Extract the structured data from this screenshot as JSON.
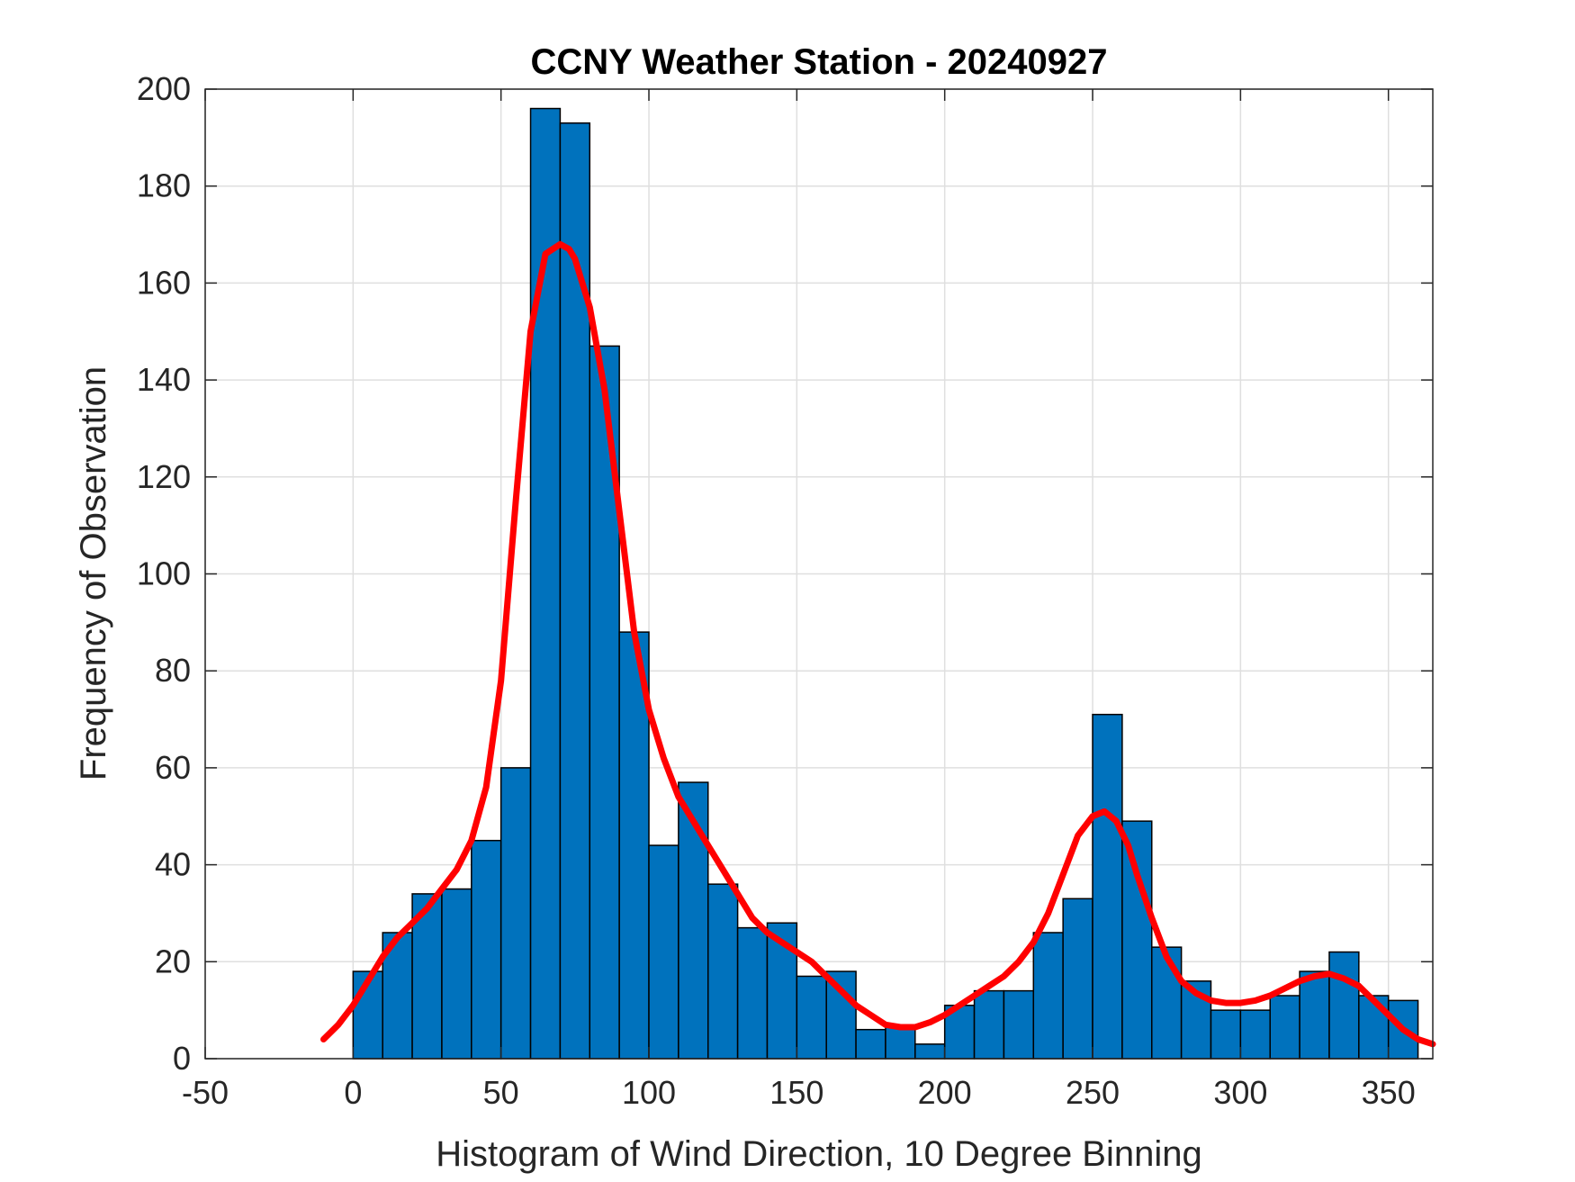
{
  "chart_data": {
    "type": "bar",
    "title": "CCNY Weather Station - 20240927",
    "xlabel": "Histogram of Wind Direction, 10 Degree Binning",
    "ylabel": "Frequency of Observation",
    "xlim": [
      -50,
      365
    ],
    "ylim": [
      0,
      200
    ],
    "xticks": [
      -50,
      0,
      50,
      100,
      150,
      200,
      250,
      300,
      350
    ],
    "yticks": [
      0,
      20,
      40,
      60,
      80,
      100,
      120,
      140,
      160,
      180,
      200
    ],
    "grid": true,
    "bin_width": 10,
    "bin_edges_start": [
      0,
      10,
      20,
      30,
      40,
      50,
      60,
      70,
      80,
      90,
      100,
      110,
      120,
      130,
      140,
      150,
      160,
      170,
      180,
      190,
      200,
      210,
      220,
      230,
      240,
      250,
      260,
      270,
      280,
      290,
      300,
      310,
      320,
      330,
      340,
      350
    ],
    "values": [
      18,
      26,
      34,
      35,
      45,
      60,
      196,
      193,
      147,
      88,
      44,
      57,
      36,
      27,
      28,
      17,
      18,
      6,
      7,
      3,
      11,
      14,
      14,
      26,
      33,
      71,
      49,
      23,
      16,
      10,
      10,
      13,
      18,
      22,
      13,
      12
    ],
    "bar_color": "#0072BD",
    "fit_curve": {
      "color": "#FF0000",
      "x": [
        -10,
        -5,
        0,
        5,
        10,
        15,
        20,
        25,
        30,
        35,
        40,
        45,
        50,
        55,
        60,
        65,
        70,
        73,
        75,
        80,
        85,
        90,
        95,
        100,
        105,
        110,
        115,
        120,
        125,
        130,
        135,
        140,
        145,
        150,
        155,
        160,
        165,
        170,
        175,
        180,
        185,
        190,
        195,
        200,
        205,
        210,
        215,
        220,
        225,
        230,
        235,
        240,
        245,
        250,
        254,
        258,
        262,
        265,
        270,
        275,
        280,
        285,
        290,
        295,
        300,
        305,
        310,
        315,
        320,
        325,
        330,
        335,
        340,
        345,
        350,
        355,
        360,
        365
      ],
      "y": [
        4,
        7,
        11,
        16,
        21,
        25,
        28,
        31,
        35,
        39,
        45,
        56,
        78,
        115,
        150,
        166,
        168,
        167,
        165,
        155,
        138,
        113,
        88,
        72,
        62,
        54,
        49,
        44,
        39,
        34,
        29,
        26,
        24,
        22,
        20,
        17,
        14,
        11,
        9,
        7,
        6.5,
        6.5,
        7.5,
        9,
        11,
        13,
        15,
        17,
        20,
        24,
        30,
        38,
        46,
        50,
        51,
        49,
        44,
        38,
        29,
        21,
        16,
        13.5,
        12,
        11.5,
        11.5,
        12,
        13,
        14.5,
        16,
        17,
        17.5,
        16.5,
        15,
        12,
        9,
        6,
        4,
        3
      ]
    }
  }
}
